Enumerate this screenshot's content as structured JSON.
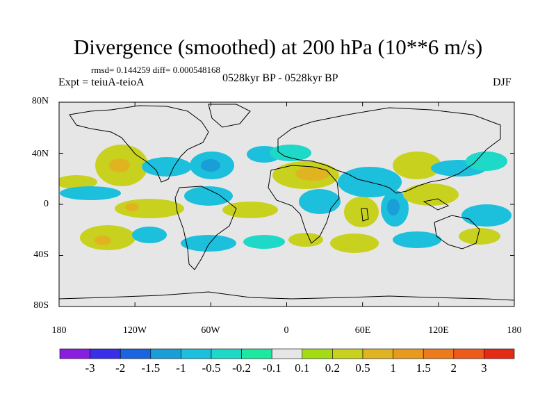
{
  "title": "Divergence (smoothed) at 200 hPa (10**6 m/s)",
  "stats": "rmsd= 0.144259 diff= 0.000548168",
  "experiment": "Expt = teiuA-teioA",
  "period": "0528kyr BP - 0528kyr BP",
  "season": "DJF",
  "y_axis": {
    "labels": [
      "80N",
      "40N",
      "0",
      "40S",
      "80S"
    ],
    "values": [
      80,
      40,
      0,
      -40,
      -80
    ]
  },
  "x_axis": {
    "labels": [
      "180",
      "120W",
      "60W",
      "0",
      "60E",
      "120E",
      "180"
    ],
    "values": [
      -180,
      -120,
      -60,
      0,
      60,
      120,
      180
    ]
  },
  "colorbar": {
    "labels": [
      "-3",
      "-2",
      "-1.5",
      "-1",
      "-0.5",
      "-0.2",
      "-0.1",
      "0.1",
      "0.2",
      "0.5",
      "1",
      "1.5",
      "2",
      "3"
    ],
    "colors": [
      "#8a1ee0",
      "#3a2ee8",
      "#1a64e0",
      "#199ed8",
      "#1cc0dc",
      "#1ed8c8",
      "#1ce8a0",
      "#e6e6e6",
      "#a4dc14",
      "#c8d21e",
      "#e0b420",
      "#e89a1e",
      "#ee7a1e",
      "#ee5a1a",
      "#e42a14"
    ]
  },
  "colors": {
    "ocean_background": "#e6e6e6",
    "coastline": "#000000"
  }
}
